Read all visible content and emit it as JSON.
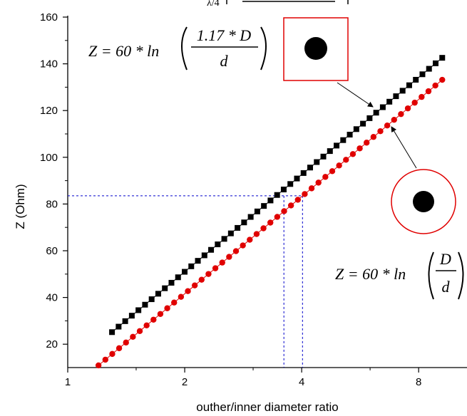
{
  "chart_data": {
    "type": "scatter",
    "title": "",
    "top_caption_fragment": "λ/4",
    "xlabel": "outher/inner diameter ratio",
    "ylabel": "Z (Ohm)",
    "xscale": "log",
    "xlim": [
      1,
      10
    ],
    "ylim": [
      10,
      160
    ],
    "xticks": [
      1,
      2,
      4,
      8
    ],
    "yticks": [
      20,
      40,
      60,
      80,
      100,
      120,
      140,
      160
    ],
    "grid": false,
    "series": [
      {
        "color": "#000000",
        "marker": "square",
        "line": "thin",
        "formula": "Z = 60 * ln(1.17 * D / d)",
        "x_start": 1.3,
        "x_end": 9.2,
        "points": 51,
        "k": 1.17,
        "coef": 60
      },
      {
        "color": "#e00000",
        "marker": "circle",
        "line": "thin",
        "formula": "Z = 60 * ln(D / d)",
        "x_start": 1.2,
        "x_end": 9.2,
        "points": 51,
        "k": 1.0,
        "coef": 60
      }
    ],
    "reference_lines": {
      "y": 83.5,
      "x_left": 3.6,
      "x_right": 4.02,
      "color": "#0000cc"
    }
  },
  "formulas": {
    "top": {
      "lhs": "Z = 60 * ln",
      "num": "1.17 * D",
      "den": "d"
    },
    "bottom": {
      "lhs": "Z = 60 * ln",
      "num": "D",
      "den": "d"
    }
  },
  "colors": {
    "black_series": "#000000",
    "red_series": "#e00000",
    "icon_frame": "#e00000",
    "guide": "#0000cc"
  }
}
